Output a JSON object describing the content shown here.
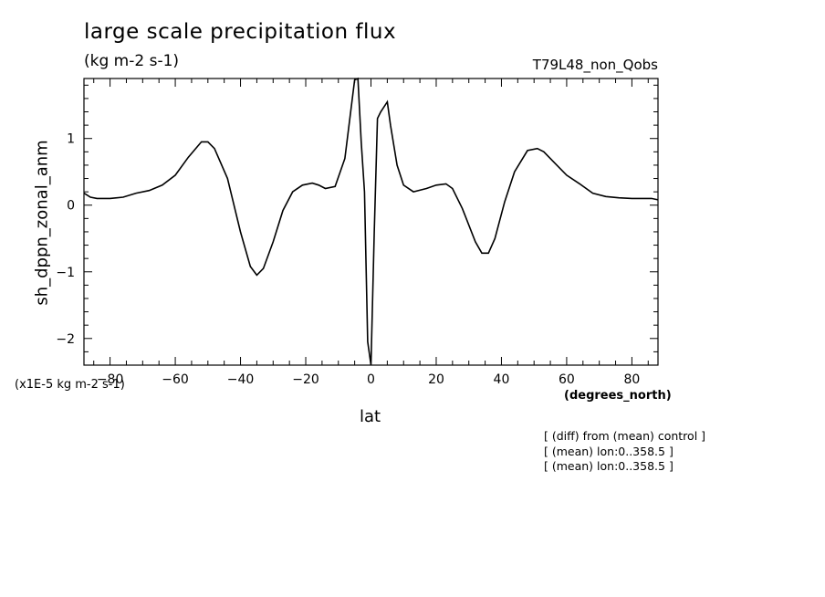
{
  "header": {
    "title": "large scale precipitation flux",
    "units": "(kg m-2 s-1)",
    "run": "T79L48_non_Qobs"
  },
  "notes": [
    "[ (diff) from (mean) control ]",
    "[ (mean) lon:0..358.5 ]",
    "[ (mean) lon:0..358.5 ]"
  ],
  "chart_data": {
    "type": "line",
    "xlabel": "lat",
    "xunit": "(degrees_north)",
    "ylabel": "sh_dppn_zonal_anm",
    "yscale_label": "(x1E-5 kg m-2 s-1)",
    "xlim": [
      -88,
      88
    ],
    "ylim": [
      -2.4,
      1.9
    ],
    "xticks": [
      -80,
      -60,
      -40,
      -20,
      0,
      20,
      40,
      60,
      80
    ],
    "yticks": [
      -2,
      -1,
      0,
      1
    ],
    "x": [
      -88,
      -86,
      -84,
      -80,
      -76,
      -72,
      -68,
      -64,
      -60,
      -56,
      -52,
      -50,
      -48,
      -44,
      -40,
      -37,
      -35,
      -33,
      -30,
      -27,
      -24,
      -21,
      -18,
      -16,
      -14,
      -11,
      -8,
      -5,
      -4,
      -3,
      -2,
      -1,
      0,
      1,
      2,
      3,
      5,
      6,
      8,
      10,
      13,
      17,
      20,
      23,
      25,
      28,
      32,
      34,
      36,
      38,
      41,
      44,
      48,
      51,
      53,
      56,
      60,
      64,
      68,
      72,
      76,
      80,
      84,
      86,
      88
    ],
    "y": [
      0.18,
      0.12,
      0.1,
      0.1,
      0.12,
      0.18,
      0.22,
      0.3,
      0.45,
      0.72,
      0.95,
      0.95,
      0.85,
      0.4,
      -0.4,
      -0.92,
      -1.05,
      -0.95,
      -0.55,
      -0.08,
      0.2,
      0.3,
      0.33,
      0.3,
      0.25,
      0.28,
      0.7,
      1.88,
      1.9,
      0.95,
      0.2,
      -2.05,
      -2.4,
      -0.4,
      1.3,
      1.4,
      1.55,
      1.2,
      0.6,
      0.3,
      0.2,
      0.25,
      0.3,
      0.32,
      0.25,
      -0.05,
      -0.55,
      -0.72,
      -0.72,
      -0.5,
      0.05,
      0.5,
      0.82,
      0.85,
      0.8,
      0.65,
      0.45,
      0.32,
      0.18,
      0.13,
      0.11,
      0.1,
      0.1,
      0.1,
      0.08
    ]
  }
}
